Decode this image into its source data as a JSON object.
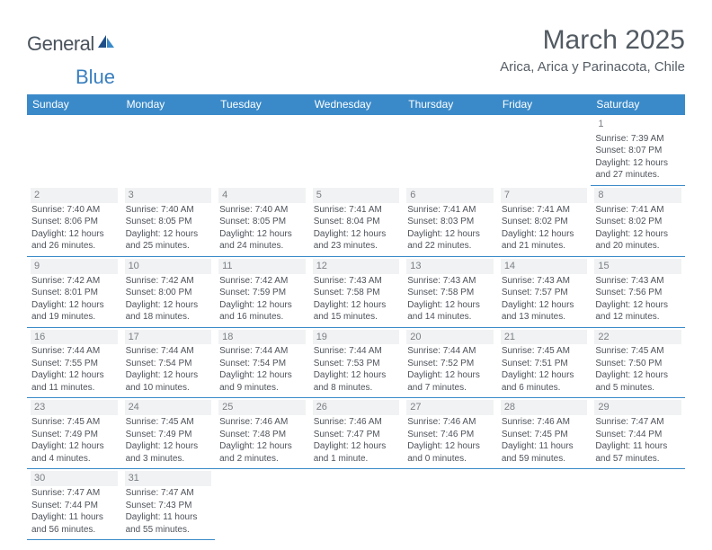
{
  "logo": {
    "text1": "General",
    "text2": "Blue"
  },
  "title": "March 2025",
  "subtitle": "Arica, Arica y Parinacota, Chile",
  "colors": {
    "header_bg": "#3a8ac9",
    "header_text": "#ffffff",
    "border": "#3a8ac9",
    "daynum_bg": "#f1f2f3",
    "body_text": "#4e535a",
    "title_text": "#525a62",
    "logo_accent": "#3a7fbf"
  },
  "weekdays": [
    "Sunday",
    "Monday",
    "Tuesday",
    "Wednesday",
    "Thursday",
    "Friday",
    "Saturday"
  ],
  "weeks": [
    [
      null,
      null,
      null,
      null,
      null,
      null,
      {
        "d": "1",
        "sr": "Sunrise: 7:39 AM",
        "ss": "Sunset: 8:07 PM",
        "dl1": "Daylight: 12 hours",
        "dl2": "and 27 minutes."
      }
    ],
    [
      {
        "d": "2",
        "sr": "Sunrise: 7:40 AM",
        "ss": "Sunset: 8:06 PM",
        "dl1": "Daylight: 12 hours",
        "dl2": "and 26 minutes."
      },
      {
        "d": "3",
        "sr": "Sunrise: 7:40 AM",
        "ss": "Sunset: 8:05 PM",
        "dl1": "Daylight: 12 hours",
        "dl2": "and 25 minutes."
      },
      {
        "d": "4",
        "sr": "Sunrise: 7:40 AM",
        "ss": "Sunset: 8:05 PM",
        "dl1": "Daylight: 12 hours",
        "dl2": "and 24 minutes."
      },
      {
        "d": "5",
        "sr": "Sunrise: 7:41 AM",
        "ss": "Sunset: 8:04 PM",
        "dl1": "Daylight: 12 hours",
        "dl2": "and 23 minutes."
      },
      {
        "d": "6",
        "sr": "Sunrise: 7:41 AM",
        "ss": "Sunset: 8:03 PM",
        "dl1": "Daylight: 12 hours",
        "dl2": "and 22 minutes."
      },
      {
        "d": "7",
        "sr": "Sunrise: 7:41 AM",
        "ss": "Sunset: 8:02 PM",
        "dl1": "Daylight: 12 hours",
        "dl2": "and 21 minutes."
      },
      {
        "d": "8",
        "sr": "Sunrise: 7:41 AM",
        "ss": "Sunset: 8:02 PM",
        "dl1": "Daylight: 12 hours",
        "dl2": "and 20 minutes."
      }
    ],
    [
      {
        "d": "9",
        "sr": "Sunrise: 7:42 AM",
        "ss": "Sunset: 8:01 PM",
        "dl1": "Daylight: 12 hours",
        "dl2": "and 19 minutes."
      },
      {
        "d": "10",
        "sr": "Sunrise: 7:42 AM",
        "ss": "Sunset: 8:00 PM",
        "dl1": "Daylight: 12 hours",
        "dl2": "and 18 minutes."
      },
      {
        "d": "11",
        "sr": "Sunrise: 7:42 AM",
        "ss": "Sunset: 7:59 PM",
        "dl1": "Daylight: 12 hours",
        "dl2": "and 16 minutes."
      },
      {
        "d": "12",
        "sr": "Sunrise: 7:43 AM",
        "ss": "Sunset: 7:58 PM",
        "dl1": "Daylight: 12 hours",
        "dl2": "and 15 minutes."
      },
      {
        "d": "13",
        "sr": "Sunrise: 7:43 AM",
        "ss": "Sunset: 7:58 PM",
        "dl1": "Daylight: 12 hours",
        "dl2": "and 14 minutes."
      },
      {
        "d": "14",
        "sr": "Sunrise: 7:43 AM",
        "ss": "Sunset: 7:57 PM",
        "dl1": "Daylight: 12 hours",
        "dl2": "and 13 minutes."
      },
      {
        "d": "15",
        "sr": "Sunrise: 7:43 AM",
        "ss": "Sunset: 7:56 PM",
        "dl1": "Daylight: 12 hours",
        "dl2": "and 12 minutes."
      }
    ],
    [
      {
        "d": "16",
        "sr": "Sunrise: 7:44 AM",
        "ss": "Sunset: 7:55 PM",
        "dl1": "Daylight: 12 hours",
        "dl2": "and 11 minutes."
      },
      {
        "d": "17",
        "sr": "Sunrise: 7:44 AM",
        "ss": "Sunset: 7:54 PM",
        "dl1": "Daylight: 12 hours",
        "dl2": "and 10 minutes."
      },
      {
        "d": "18",
        "sr": "Sunrise: 7:44 AM",
        "ss": "Sunset: 7:54 PM",
        "dl1": "Daylight: 12 hours",
        "dl2": "and 9 minutes."
      },
      {
        "d": "19",
        "sr": "Sunrise: 7:44 AM",
        "ss": "Sunset: 7:53 PM",
        "dl1": "Daylight: 12 hours",
        "dl2": "and 8 minutes."
      },
      {
        "d": "20",
        "sr": "Sunrise: 7:44 AM",
        "ss": "Sunset: 7:52 PM",
        "dl1": "Daylight: 12 hours",
        "dl2": "and 7 minutes."
      },
      {
        "d": "21",
        "sr": "Sunrise: 7:45 AM",
        "ss": "Sunset: 7:51 PM",
        "dl1": "Daylight: 12 hours",
        "dl2": "and 6 minutes."
      },
      {
        "d": "22",
        "sr": "Sunrise: 7:45 AM",
        "ss": "Sunset: 7:50 PM",
        "dl1": "Daylight: 12 hours",
        "dl2": "and 5 minutes."
      }
    ],
    [
      {
        "d": "23",
        "sr": "Sunrise: 7:45 AM",
        "ss": "Sunset: 7:49 PM",
        "dl1": "Daylight: 12 hours",
        "dl2": "and 4 minutes."
      },
      {
        "d": "24",
        "sr": "Sunrise: 7:45 AM",
        "ss": "Sunset: 7:49 PM",
        "dl1": "Daylight: 12 hours",
        "dl2": "and 3 minutes."
      },
      {
        "d": "25",
        "sr": "Sunrise: 7:46 AM",
        "ss": "Sunset: 7:48 PM",
        "dl1": "Daylight: 12 hours",
        "dl2": "and 2 minutes."
      },
      {
        "d": "26",
        "sr": "Sunrise: 7:46 AM",
        "ss": "Sunset: 7:47 PM",
        "dl1": "Daylight: 12 hours",
        "dl2": "and 1 minute."
      },
      {
        "d": "27",
        "sr": "Sunrise: 7:46 AM",
        "ss": "Sunset: 7:46 PM",
        "dl1": "Daylight: 12 hours",
        "dl2": "and 0 minutes."
      },
      {
        "d": "28",
        "sr": "Sunrise: 7:46 AM",
        "ss": "Sunset: 7:45 PM",
        "dl1": "Daylight: 11 hours",
        "dl2": "and 59 minutes."
      },
      {
        "d": "29",
        "sr": "Sunrise: 7:47 AM",
        "ss": "Sunset: 7:44 PM",
        "dl1": "Daylight: 11 hours",
        "dl2": "and 57 minutes."
      }
    ],
    [
      {
        "d": "30",
        "sr": "Sunrise: 7:47 AM",
        "ss": "Sunset: 7:44 PM",
        "dl1": "Daylight: 11 hours",
        "dl2": "and 56 minutes."
      },
      {
        "d": "31",
        "sr": "Sunrise: 7:47 AM",
        "ss": "Sunset: 7:43 PM",
        "dl1": "Daylight: 11 hours",
        "dl2": "and 55 minutes."
      },
      null,
      null,
      null,
      null,
      null
    ]
  ]
}
